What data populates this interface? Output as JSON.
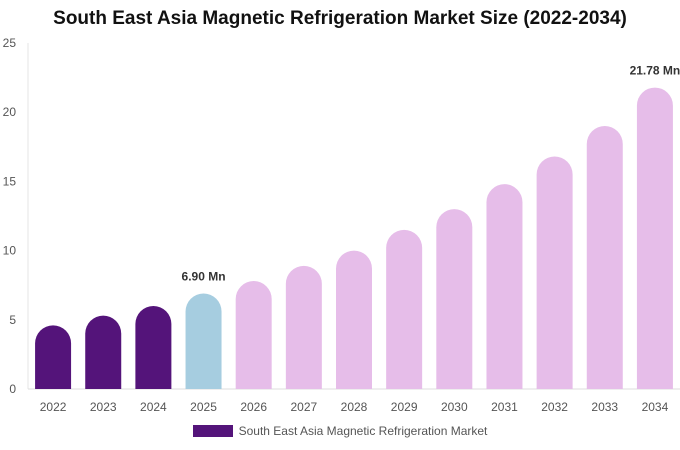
{
  "chart_data": {
    "type": "bar",
    "title": "South East Asia Magnetic Refrigeration Market Size (2022-2034)",
    "categories": [
      "2022",
      "2023",
      "2024",
      "2025",
      "2026",
      "2027",
      "2028",
      "2029",
      "2030",
      "2031",
      "2032",
      "2033",
      "2034"
    ],
    "series": [
      {
        "name": "South East Asia Magnetic Refrigeration Market",
        "values": [
          4.6,
          5.3,
          6.0,
          6.9,
          7.8,
          8.9,
          10.0,
          11.5,
          13.0,
          14.8,
          16.8,
          19.0,
          21.78
        ]
      }
    ],
    "ylim": [
      0,
      25
    ],
    "yticks": [
      0,
      5,
      10,
      15,
      20,
      25
    ],
    "data_labels": [
      {
        "category": "2025",
        "text": "6.90 Mn"
      },
      {
        "category": "2034",
        "text": "21.78 Mn"
      }
    ],
    "colors": {
      "historical": "#54147a",
      "current": "#a6cde0",
      "forecast": "#e6bde9",
      "legend": "#54147a"
    },
    "grid": false,
    "legend_position": "bottom"
  }
}
